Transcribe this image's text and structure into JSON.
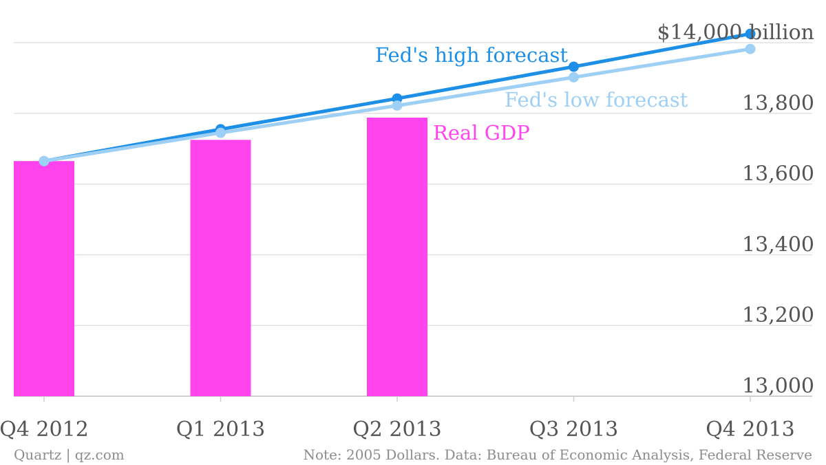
{
  "chart_data": {
    "type": "bar",
    "categories": [
      "Q4 2012",
      "Q1 2013",
      "Q2 2013",
      "Q3 2013",
      "Q4 2013"
    ],
    "bars": {
      "name": "Real GDP",
      "values": [
        13665,
        13725,
        13788
      ],
      "color": "#ff44ee"
    },
    "series": [
      {
        "name": "Fed's high forecast",
        "values": [
          13665,
          13755,
          13842,
          13932,
          14025
        ],
        "color": "#1e8fe6"
      },
      {
        "name": "Fed's low forecast",
        "values": [
          13665,
          13745,
          13822,
          13902,
          13982
        ],
        "color": "#9ecff5"
      }
    ],
    "y_ticks": [
      {
        "value": 13000,
        "label": "13,000"
      },
      {
        "value": 13200,
        "label": "13,200"
      },
      {
        "value": 13400,
        "label": "13,400"
      },
      {
        "value": 13600,
        "label": "13,600"
      },
      {
        "value": 13800,
        "label": "13,800"
      },
      {
        "value": 14000,
        "label": "$14,000 billion"
      }
    ],
    "ylim": [
      13000,
      14000
    ],
    "y_axis_position": "right",
    "grid": true,
    "title": "",
    "xlabel": "",
    "ylabel": ""
  },
  "footer": {
    "source": "Quartz | qz.com",
    "note": "Note: 2005 Dollars. Data: Bureau of Economic Analysis, Federal Reserve"
  }
}
